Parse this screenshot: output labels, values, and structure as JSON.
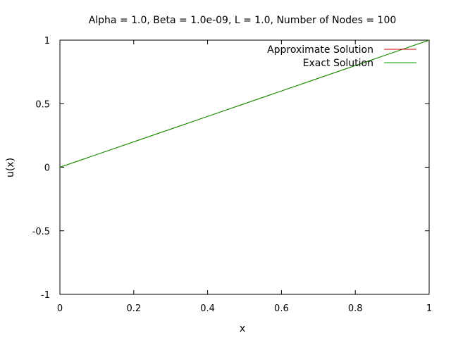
{
  "chart_data": {
    "type": "line",
    "title": "Alpha = 1.0, Beta = 1.0e-09, L = 1.0, Number of Nodes = 100",
    "xlabel": "x",
    "ylabel": "u(x)",
    "xlim": [
      0,
      1
    ],
    "ylim": [
      -1,
      1
    ],
    "xticks": [
      0,
      0.2,
      0.4,
      0.6,
      0.8,
      1
    ],
    "xtick_labels": [
      "0",
      "0.2",
      "0.4",
      "0.6",
      "0.8",
      "1"
    ],
    "yticks": [
      -1,
      -0.5,
      0,
      0.5,
      1
    ],
    "ytick_labels": [
      "-1",
      "-0.5",
      "0",
      "0.5",
      "1"
    ],
    "grid": false,
    "legend_position": "top-right",
    "series": [
      {
        "name": "Approximate Solution",
        "color": "#cc0000",
        "x": [
          0,
          0.1,
          0.2,
          0.3,
          0.4,
          0.5,
          0.6,
          0.7,
          0.8,
          0.9,
          1.0
        ],
        "y": [
          0,
          0.1,
          0.2,
          0.3,
          0.4,
          0.5,
          0.6,
          0.7,
          0.8,
          0.9,
          1.0
        ]
      },
      {
        "name": "Exact Solution",
        "color": "#00a000",
        "x": [
          0,
          0.1,
          0.2,
          0.3,
          0.4,
          0.5,
          0.6,
          0.7,
          0.8,
          0.9,
          1.0
        ],
        "y": [
          0,
          0.1,
          0.2,
          0.3,
          0.4,
          0.5,
          0.6,
          0.7,
          0.8,
          0.9,
          1.0
        ]
      }
    ]
  }
}
